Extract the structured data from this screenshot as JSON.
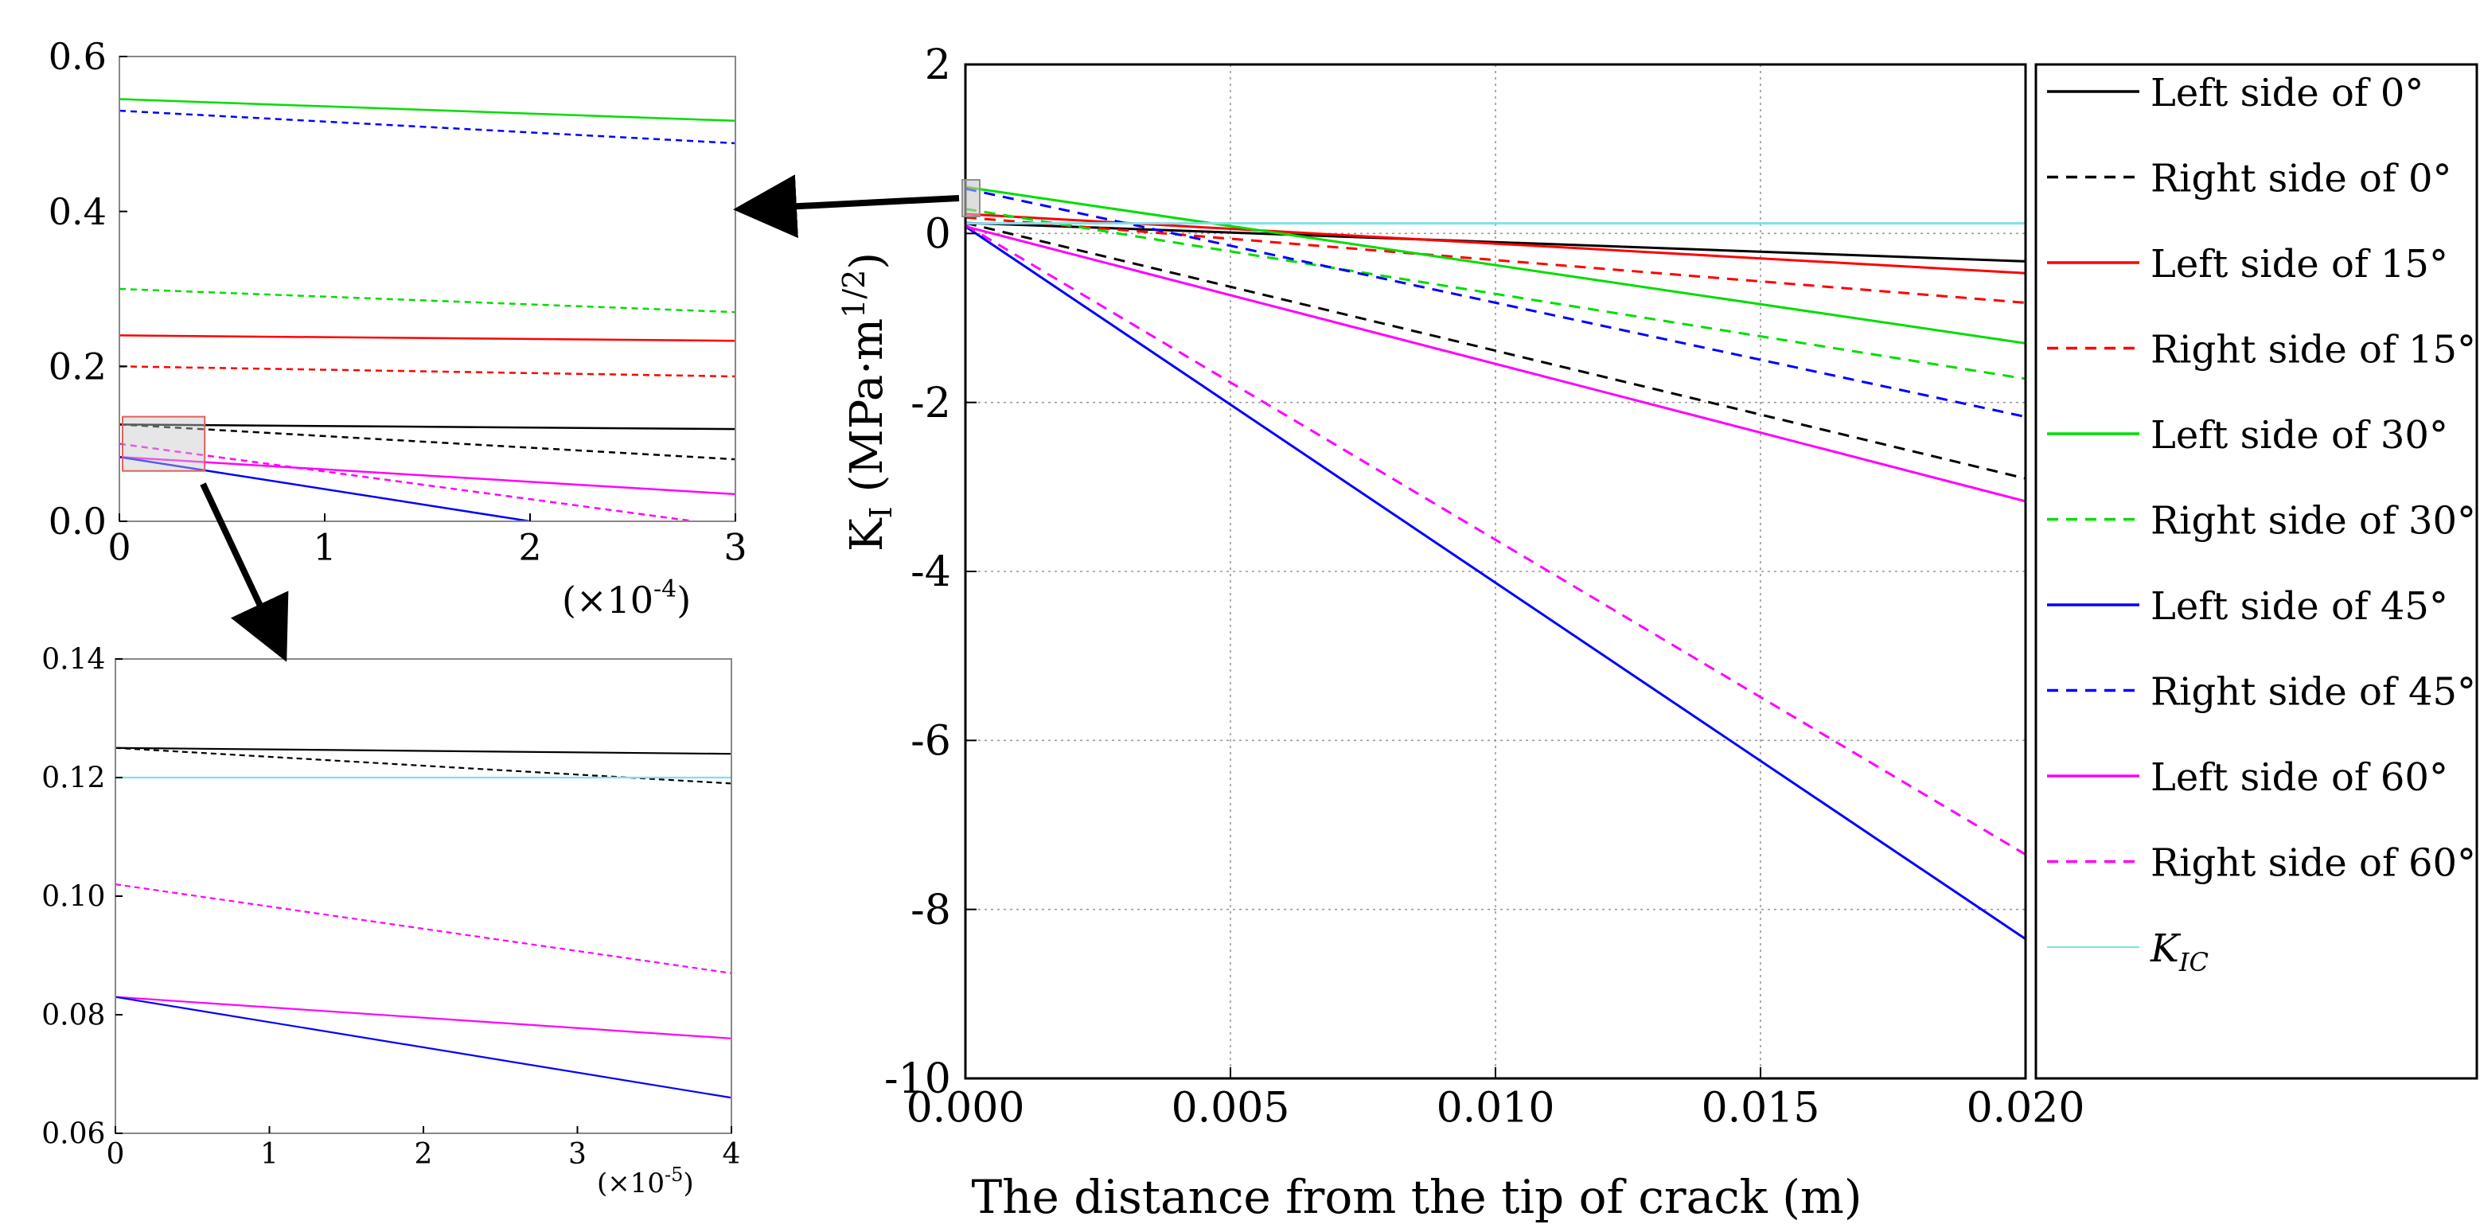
{
  "chart_data": [
    {
      "id": "main",
      "type": "line",
      "title": "",
      "xlabel": "The distance from the tip of crack  (m)",
      "ylabel_main": "K",
      "ylabel_sub": "I",
      "ylabel_units_prefix": " (MPa·m",
      "ylabel_units_sup": "1/2",
      "ylabel_units_suffix": ")",
      "xlim": [
        0.0,
        0.02
      ],
      "ylim": [
        -10,
        2
      ],
      "xticks": [
        0.0,
        0.005,
        0.01,
        0.015,
        0.02
      ],
      "xtick_labels": [
        "0.000",
        "0.005",
        "0.010",
        "0.015",
        "0.020"
      ],
      "yticks": [
        2,
        0,
        -2,
        -4,
        -6,
        -8,
        -10
      ],
      "ytick_labels": [
        "2",
        "0",
        "-2",
        "-4",
        "-6",
        "-8",
        "-10"
      ],
      "grid": true,
      "legend_position": "right",
      "series": [
        {
          "name": "Left side of 0°",
          "color": "#000000",
          "dash": "solid",
          "x": [
            0,
            0.02
          ],
          "y": [
            0.125,
            -0.33
          ]
        },
        {
          "name": "Right side of 0°",
          "color": "#000000",
          "dash": "dashed",
          "x": [
            0,
            0.02
          ],
          "y": [
            0.125,
            -2.9
          ]
        },
        {
          "name": "Left side of 15°",
          "color": "#ff0000",
          "dash": "solid",
          "x": [
            0,
            0.02
          ],
          "y": [
            0.23,
            -0.47
          ]
        },
        {
          "name": "Right side of 15°",
          "color": "#ff0000",
          "dash": "dashed",
          "x": [
            0,
            0.02
          ],
          "y": [
            0.19,
            -0.82
          ]
        },
        {
          "name": "Left side of 30°",
          "color": "#00dd00",
          "dash": "solid",
          "x": [
            0,
            0.02
          ],
          "y": [
            0.55,
            -1.3
          ]
        },
        {
          "name": "Right side of 30°",
          "color": "#00dd00",
          "dash": "dashed",
          "x": [
            0,
            0.02
          ],
          "y": [
            0.29,
            -1.72
          ]
        },
        {
          "name": "Left side of 45°",
          "color": "#0000ff",
          "dash": "solid",
          "x": [
            0,
            0.02
          ],
          "y": [
            0.083,
            -8.35
          ]
        },
        {
          "name": "Right side of 45°",
          "color": "#0000ff",
          "dash": "dashed",
          "x": [
            0,
            0.02
          ],
          "y": [
            0.53,
            -2.17
          ]
        },
        {
          "name": "Left side of 60°",
          "color": "#ff00ff",
          "dash": "solid",
          "x": [
            0,
            0.02
          ],
          "y": [
            0.083,
            -3.17
          ]
        },
        {
          "name": "Right side of 60°",
          "color": "#ff00ff",
          "dash": "dashed",
          "x": [
            0,
            0.02
          ],
          "y": [
            0.1,
            -7.35
          ]
        },
        {
          "name": "K_IC",
          "color": "#7fe0e8",
          "dash": "solid",
          "x": [
            0,
            0.02
          ],
          "y": [
            0.12,
            0.12
          ]
        }
      ],
      "legend_entries": [
        {
          "label": "Left side of 0°",
          "color": "#000000",
          "dash": "solid"
        },
        {
          "label": "Right side of 0°",
          "color": "#000000",
          "dash": "dashed"
        },
        {
          "label": "Left side of 15°",
          "color": "#ff0000",
          "dash": "solid"
        },
        {
          "label": "Right side of 15°",
          "color": "#ff0000",
          "dash": "dashed"
        },
        {
          "label": "Left side of 30°",
          "color": "#00dd00",
          "dash": "solid"
        },
        {
          "label": "Right side of 30°",
          "color": "#00dd00",
          "dash": "dashed"
        },
        {
          "label": "Left side of 45°",
          "color": "#0000ff",
          "dash": "solid"
        },
        {
          "label": "Right side of 45°",
          "color": "#0000ff",
          "dash": "dashed"
        },
        {
          "label": "Left side of 60°",
          "color": "#ff00ff",
          "dash": "solid"
        },
        {
          "label": "Right side of 60°",
          "color": "#ff00ff",
          "dash": "dashed"
        },
        {
          "label": "K",
          "label_sub": "IC",
          "color": "#7fe0e8",
          "dash": "solid"
        }
      ]
    },
    {
      "id": "inset1",
      "type": "line",
      "title": "",
      "xlabel": "",
      "ylabel": "",
      "xlim": [
        0,
        3
      ],
      "ylim": [
        0.0,
        0.6
      ],
      "xticks": [
        0,
        1,
        2,
        3
      ],
      "xtick_labels": [
        "0",
        "1",
        "2",
        "3"
      ],
      "yticks": [
        0.0,
        0.2,
        0.4,
        0.6
      ],
      "ytick_labels": [
        "0.0",
        "0.2",
        "0.4",
        "0.6"
      ],
      "x_scale_note_prefix": "(×10",
      "x_scale_note_sup": "-4",
      "x_scale_note_suffix": ")",
      "grid": false,
      "series": [
        {
          "name": "Left side of 30°",
          "color": "#00dd00",
          "dash": "solid",
          "x": [
            0,
            3
          ],
          "y": [
            0.545,
            0.517
          ]
        },
        {
          "name": "Right side of 45°",
          "color": "#0000ff",
          "dash": "dashed",
          "x": [
            0,
            3
          ],
          "y": [
            0.53,
            0.488
          ]
        },
        {
          "name": "Right side of 30°",
          "color": "#00dd00",
          "dash": "dashed",
          "x": [
            0,
            3
          ],
          "y": [
            0.3,
            0.27
          ]
        },
        {
          "name": "Left side of 15°",
          "color": "#ff0000",
          "dash": "solid",
          "x": [
            0,
            3
          ],
          "y": [
            0.24,
            0.233
          ]
        },
        {
          "name": "Right side of 15°",
          "color": "#ff0000",
          "dash": "dashed",
          "x": [
            0,
            3
          ],
          "y": [
            0.2,
            0.187
          ]
        },
        {
          "name": "Left side of 0°",
          "color": "#000000",
          "dash": "solid",
          "x": [
            0,
            3
          ],
          "y": [
            0.125,
            0.119
          ]
        },
        {
          "name": "Right side of 0°",
          "color": "#000000",
          "dash": "dashed",
          "x": [
            0,
            3
          ],
          "y": [
            0.125,
            0.08
          ]
        },
        {
          "name": "Left side of 60°",
          "color": "#ff00ff",
          "dash": "solid",
          "x": [
            0,
            3
          ],
          "y": [
            0.083,
            0.035
          ]
        },
        {
          "name": "Right side of 60°",
          "color": "#ff00ff",
          "dash": "dashed",
          "x": [
            0,
            2.8
          ],
          "y": [
            0.1,
            0.0
          ]
        },
        {
          "name": "Left side of 45°",
          "color": "#0000ff",
          "dash": "solid",
          "x": [
            0,
            2.0
          ],
          "y": [
            0.083,
            0.0
          ]
        }
      ],
      "zoom_box": {
        "x": [
          0,
          0.4
        ],
        "y": [
          0.065,
          0.135
        ]
      }
    },
    {
      "id": "inset2",
      "type": "line",
      "title": "",
      "xlabel": "",
      "ylabel": "",
      "xlim": [
        0,
        4
      ],
      "ylim": [
        0.06,
        0.14
      ],
      "xticks": [
        0,
        1,
        2,
        3,
        4
      ],
      "xtick_labels": [
        "0",
        "1",
        "2",
        "3",
        "4"
      ],
      "yticks": [
        0.06,
        0.08,
        0.1,
        0.12,
        0.14
      ],
      "ytick_labels": [
        "0.06",
        "0.08",
        "0.10",
        "0.12",
        "0.14"
      ],
      "x_scale_note_prefix": "(×10",
      "x_scale_note_sup": "-5",
      "x_scale_note_suffix": ")",
      "grid": false,
      "series": [
        {
          "name": "Left side of 0°",
          "color": "#000000",
          "dash": "solid",
          "x": [
            0,
            4
          ],
          "y": [
            0.125,
            0.124
          ]
        },
        {
          "name": "Right side of 0°",
          "color": "#000000",
          "dash": "dashed",
          "x": [
            0,
            4
          ],
          "y": [
            0.125,
            0.119
          ]
        },
        {
          "name": "K_IC",
          "color": "#7fe0e8",
          "dash": "solid",
          "x": [
            0,
            4
          ],
          "y": [
            0.12,
            0.12
          ]
        },
        {
          "name": "Right side of 60°",
          "color": "#ff00ff",
          "dash": "dashed",
          "x": [
            0,
            4
          ],
          "y": [
            0.102,
            0.087
          ]
        },
        {
          "name": "Left side of 60°",
          "color": "#ff00ff",
          "dash": "solid",
          "x": [
            0,
            4
          ],
          "y": [
            0.083,
            0.076
          ]
        },
        {
          "name": "Left side of 45°",
          "color": "#0000ff",
          "dash": "solid",
          "x": [
            0,
            4
          ],
          "y": [
            0.083,
            0.066
          ]
        }
      ]
    }
  ]
}
